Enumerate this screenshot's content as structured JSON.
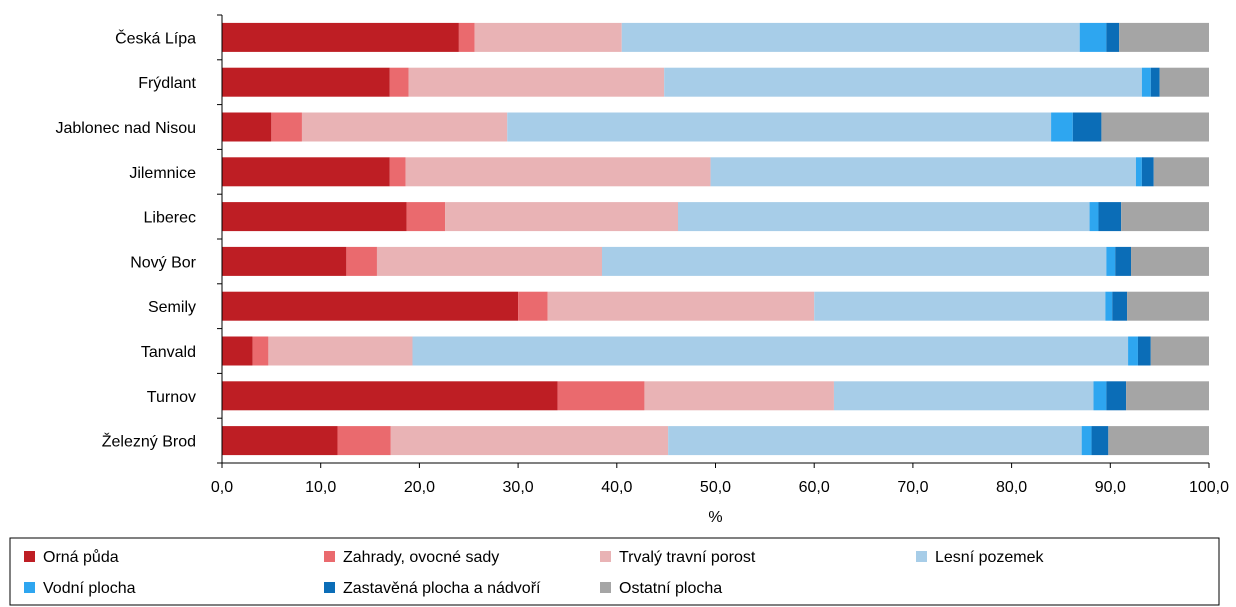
{
  "chart_data": {
    "type": "bar",
    "orientation": "horizontal",
    "stacked": true,
    "title": "",
    "xlabel": "%",
    "ylabel": "",
    "xlim": [
      0,
      100
    ],
    "x_ticks": [
      "0,0",
      "10,0",
      "20,0",
      "30,0",
      "40,0",
      "50,0",
      "60,0",
      "70,0",
      "80,0",
      "90,0",
      "100,0"
    ],
    "categories": [
      "Česká Lípa",
      "Frýdlant",
      "Jablonec nad Nisou",
      "Jilemnice",
      "Liberec",
      "Nový Bor",
      "Semily",
      "Tanvald",
      "Turnov",
      "Železný Brod"
    ],
    "series": [
      {
        "name": "Orná půda",
        "color": "#be1e24",
        "values": [
          24.0,
          17.0,
          5.0,
          17.0,
          18.7,
          12.6,
          30.0,
          3.1,
          34.0,
          11.7
        ]
      },
      {
        "name": "Zahrady, ovocné sady",
        "color": "#ea6a6e",
        "values": [
          1.6,
          1.9,
          3.1,
          1.6,
          3.9,
          3.1,
          3.0,
          1.6,
          8.8,
          5.4
        ]
      },
      {
        "name": "Trvalý travní porost",
        "color": "#e9b3b5",
        "values": [
          14.9,
          25.9,
          20.8,
          30.9,
          23.6,
          22.8,
          27.0,
          14.6,
          19.2,
          28.1
        ]
      },
      {
        "name": "Lesní pozemek",
        "color": "#a7cde8",
        "values": [
          46.4,
          48.4,
          55.1,
          43.1,
          41.7,
          51.1,
          29.5,
          72.5,
          26.3,
          41.9
        ]
      },
      {
        "name": "Vodní plocha",
        "color": "#2ea6f0",
        "values": [
          2.7,
          0.9,
          2.2,
          0.6,
          0.9,
          0.9,
          0.7,
          1.0,
          1.3,
          1.0
        ]
      },
      {
        "name": "Zastavěná plocha a nádvoří",
        "color": "#0b6db7",
        "values": [
          1.3,
          0.9,
          2.9,
          1.2,
          2.3,
          1.6,
          1.5,
          1.3,
          2.0,
          1.7
        ]
      },
      {
        "name": "Ostatní plocha",
        "color": "#a5a5a5",
        "values": [
          9.1,
          5.0,
          10.9,
          5.6,
          8.9,
          7.9,
          8.3,
          5.9,
          8.4,
          10.2
        ]
      }
    ],
    "grid": false,
    "legend_position": "bottom"
  }
}
